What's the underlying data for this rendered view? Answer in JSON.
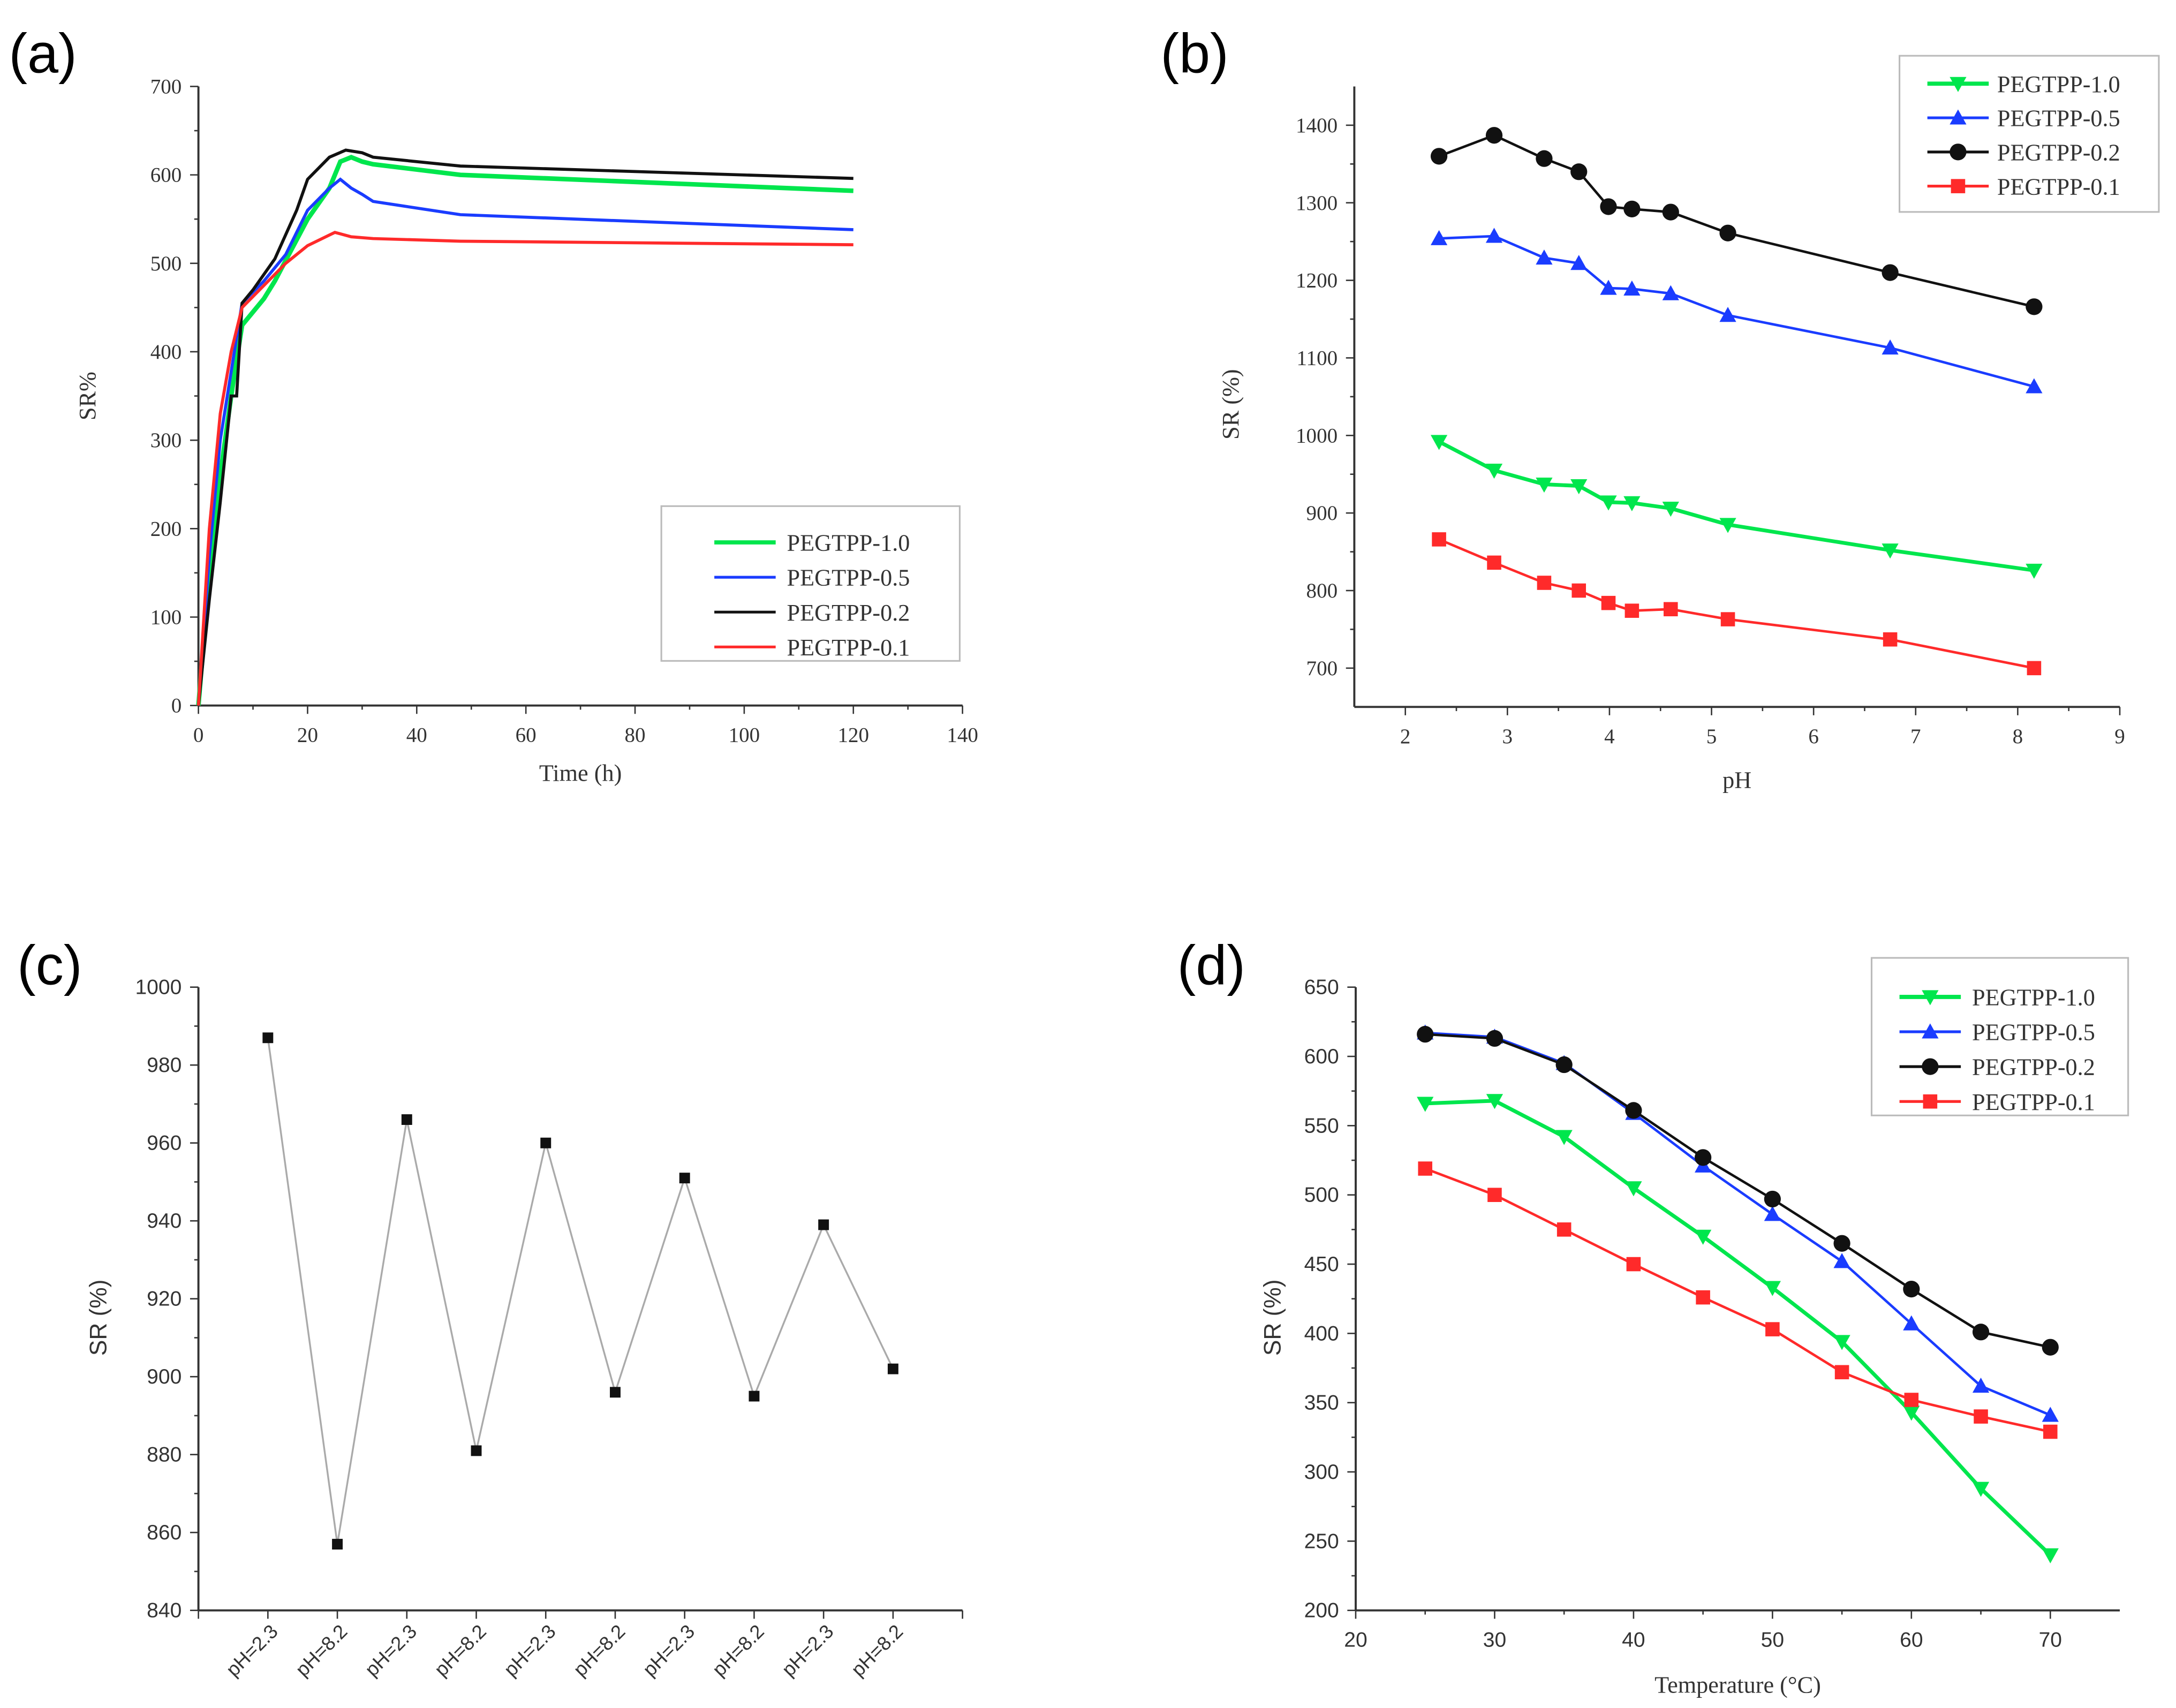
{
  "colors": {
    "PEGTPP-1.0": "#00e64d",
    "PEGTPP-0.5": "#1a3cff",
    "PEGTPP-0.2": "#111111",
    "PEGTPP-0.1": "#ff2a2a",
    "cycle": "#aaaaaa"
  },
  "chart_data": [
    {
      "panel": "(a)",
      "type": "line",
      "xlabel": "Time (h)",
      "ylabel": "SR%",
      "xlim": [
        0,
        140
      ],
      "ylim": [
        0,
        700
      ],
      "xticks": [
        0,
        20,
        40,
        60,
        80,
        100,
        120,
        140
      ],
      "yticks": [
        0,
        100,
        200,
        300,
        400,
        500,
        600,
        700
      ],
      "legend": "bottom-right",
      "series": [
        {
          "name": "PEGTPP-1.0",
          "marker": "none",
          "x": [
            0,
            2,
            4,
            6,
            8,
            12,
            14,
            20,
            24,
            26,
            28,
            30,
            32,
            48,
            120
          ],
          "y": [
            0,
            150,
            260,
            350,
            430,
            460,
            480,
            550,
            585,
            615,
            620,
            615,
            612,
            600,
            582
          ]
        },
        {
          "name": "PEGTPP-0.5",
          "marker": "none",
          "x": [
            0,
            2,
            4,
            8,
            12,
            16,
            20,
            24,
            26,
            28,
            30,
            32,
            48,
            120
          ],
          "y": [
            0,
            170,
            300,
            455,
            480,
            510,
            560,
            585,
            595,
            585,
            578,
            570,
            555,
            538
          ]
        },
        {
          "name": "PEGTPP-0.2",
          "marker": "none",
          "x": [
            0,
            2,
            4,
            6,
            7,
            8,
            10,
            14,
            18,
            20,
            24,
            27,
            30,
            32,
            48,
            120
          ],
          "y": [
            0,
            120,
            230,
            350,
            350,
            455,
            470,
            505,
            560,
            595,
            620,
            628,
            625,
            620,
            610,
            596
          ]
        },
        {
          "name": "PEGTPP-0.1",
          "marker": "none",
          "x": [
            0,
            2,
            4,
            6,
            8,
            12,
            16,
            20,
            24,
            25,
            28,
            32,
            48,
            120
          ],
          "y": [
            0,
            200,
            330,
            400,
            450,
            475,
            500,
            520,
            532,
            535,
            530,
            528,
            525,
            521
          ]
        }
      ]
    },
    {
      "panel": "(b)",
      "type": "line",
      "xlabel": "pH",
      "ylabel": "SR (%)",
      "xlim": [
        1.5,
        9
      ],
      "ylim": [
        650,
        1450
      ],
      "xticks": [
        2,
        3,
        4,
        5,
        6,
        7,
        8,
        9
      ],
      "yticks": [
        700,
        800,
        900,
        1000,
        1100,
        1200,
        1300,
        1400
      ],
      "legend": "top-right",
      "series": [
        {
          "name": "PEGTPP-1.0",
          "marker": "triangle-down",
          "x": [
            2.33,
            2.87,
            3.36,
            3.7,
            3.99,
            4.22,
            4.6,
            5.16,
            6.75,
            8.16
          ],
          "y": [
            992,
            955,
            937,
            935,
            914,
            913,
            906,
            885,
            852,
            826
          ]
        },
        {
          "name": "PEGTPP-0.5",
          "marker": "triangle-up",
          "x": [
            2.33,
            2.87,
            3.36,
            3.7,
            3.99,
            4.22,
            4.6,
            5.16,
            6.75,
            8.16
          ],
          "y": [
            1254,
            1257,
            1229,
            1222,
            1190,
            1189,
            1183,
            1155,
            1113,
            1063
          ]
        },
        {
          "name": "PEGTPP-0.2",
          "marker": "circle",
          "x": [
            2.33,
            2.87,
            3.36,
            3.7,
            3.99,
            4.22,
            4.6,
            5.16,
            6.75,
            8.16
          ],
          "y": [
            1360,
            1387,
            1357,
            1340,
            1295,
            1292,
            1288,
            1261,
            1210,
            1166
          ]
        },
        {
          "name": "PEGTPP-0.1",
          "marker": "square",
          "x": [
            2.33,
            2.87,
            3.36,
            3.7,
            3.99,
            4.22,
            4.6,
            5.16,
            6.75,
            8.16
          ],
          "y": [
            866,
            836,
            810,
            800,
            784,
            774,
            776,
            763,
            737,
            700
          ]
        }
      ]
    },
    {
      "panel": "(c)",
      "type": "line",
      "xlabel": "",
      "ylabel": "SR (%)",
      "xlim": [
        0,
        11
      ],
      "ylim": [
        840,
        1000
      ],
      "categories": [
        "pH=2.3",
        "pH=8.2",
        "pH=2.3",
        "pH=8.2",
        "pH=2.3",
        "pH=8.2",
        "pH=2.3",
        "pH=8.2",
        "pH=2.3",
        "pH=8.2"
      ],
      "yticks": [
        840,
        860,
        880,
        900,
        920,
        940,
        960,
        980,
        1000
      ],
      "series": [
        {
          "name": "cycle",
          "marker": "square",
          "x": [
            1,
            2,
            3,
            4,
            5,
            6,
            7,
            8,
            9,
            10
          ],
          "y": [
            987,
            857,
            966,
            881,
            960,
            896,
            951,
            895,
            939,
            902
          ]
        }
      ]
    },
    {
      "panel": "(d)",
      "type": "line",
      "xlabel": "Temperature (°C)",
      "ylabel": "SR (%)",
      "xlim": [
        20,
        75
      ],
      "ylim": [
        200,
        650
      ],
      "xticks": [
        20,
        30,
        40,
        50,
        60,
        70
      ],
      "yticks": [
        200,
        250,
        300,
        350,
        400,
        450,
        500,
        550,
        600,
        650
      ],
      "legend": "top-right",
      "series": [
        {
          "name": "PEGTPP-1.0",
          "marker": "triangle-down",
          "x": [
            25,
            30,
            35,
            40,
            45,
            50,
            55,
            60,
            65,
            70
          ],
          "y": [
            566,
            568,
            542,
            505,
            470,
            433,
            394,
            343,
            288,
            240
          ]
        },
        {
          "name": "PEGTPP-0.5",
          "marker": "triangle-up",
          "x": [
            25,
            30,
            35,
            40,
            45,
            50,
            55,
            60,
            65,
            70
          ],
          "y": [
            617,
            614,
            595,
            559,
            521,
            486,
            452,
            407,
            362,
            341
          ]
        },
        {
          "name": "PEGTPP-0.2",
          "marker": "circle",
          "x": [
            25,
            30,
            35,
            40,
            45,
            50,
            55,
            60,
            65,
            70
          ],
          "y": [
            616,
            613,
            594,
            561,
            527,
            497,
            465,
            432,
            401,
            390
          ]
        },
        {
          "name": "PEGTPP-0.1",
          "marker": "square",
          "x": [
            25,
            30,
            35,
            40,
            45,
            50,
            55,
            60,
            65,
            70
          ],
          "y": [
            519,
            500,
            475,
            450,
            426,
            403,
            372,
            352,
            340,
            329
          ]
        }
      ]
    }
  ]
}
